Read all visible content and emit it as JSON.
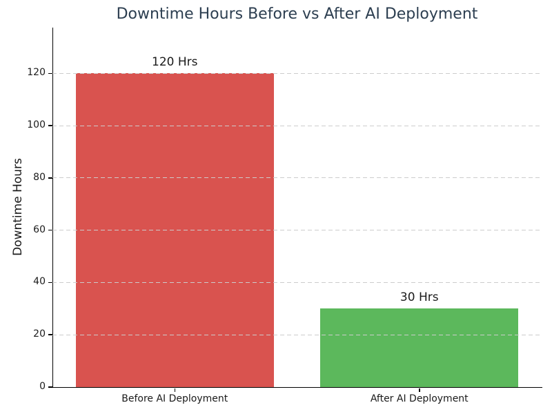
{
  "title": "Downtime Hours Before vs After AI Deployment",
  "colors": {
    "title": "#2c3e50",
    "axis": "#000000",
    "grid": "#cccccc",
    "text": "#1a1a1a",
    "background": "#ffffff"
  },
  "chart_data": {
    "type": "bar",
    "title": "Downtime Hours Before vs After AI Deployment",
    "categories": [
      "Before AI Deployment",
      "After AI Deployment"
    ],
    "values": [
      120,
      30
    ],
    "bar_labels": [
      "120 Hrs",
      "30 Hrs"
    ],
    "bar_colors": [
      "#d9534f",
      "#5cb85c"
    ],
    "xlabel": "",
    "ylabel": "Downtime Hours",
    "ylim": [
      0,
      137.5
    ],
    "yticks": [
      0,
      20,
      40,
      60,
      80,
      100,
      120
    ],
    "grid": "horizontal-dashed",
    "grid_above_bars": true,
    "legend": "none",
    "bar_width_fraction": 0.81
  }
}
